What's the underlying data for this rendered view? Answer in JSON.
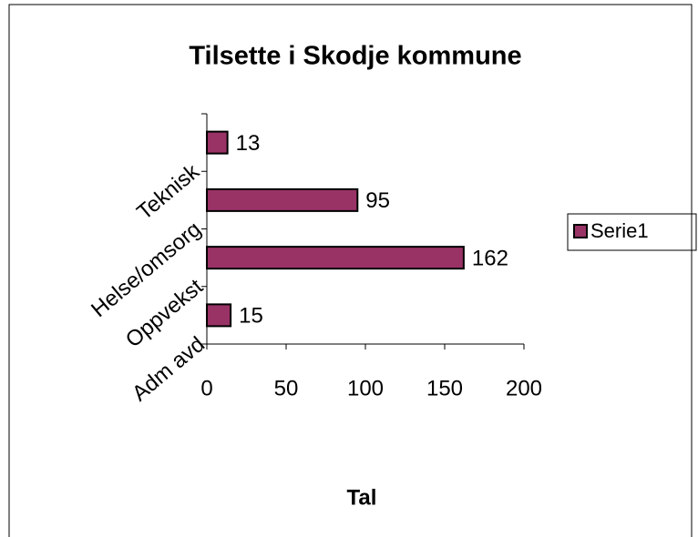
{
  "chart_data": {
    "type": "barh",
    "title": "Tilsette i Skodje kommune",
    "x_label": "Tal",
    "categories": [
      "Adm avd",
      "Oppvekst",
      "Helse/omsorg",
      "Teknisk"
    ],
    "series": [
      {
        "name": "Serie1",
        "color": "#993366",
        "values": [
          15,
          162,
          95,
          13
        ]
      }
    ],
    "xlim": [
      0,
      200
    ],
    "xticks": [
      0,
      50,
      100,
      150,
      200
    ],
    "legend": "right"
  }
}
